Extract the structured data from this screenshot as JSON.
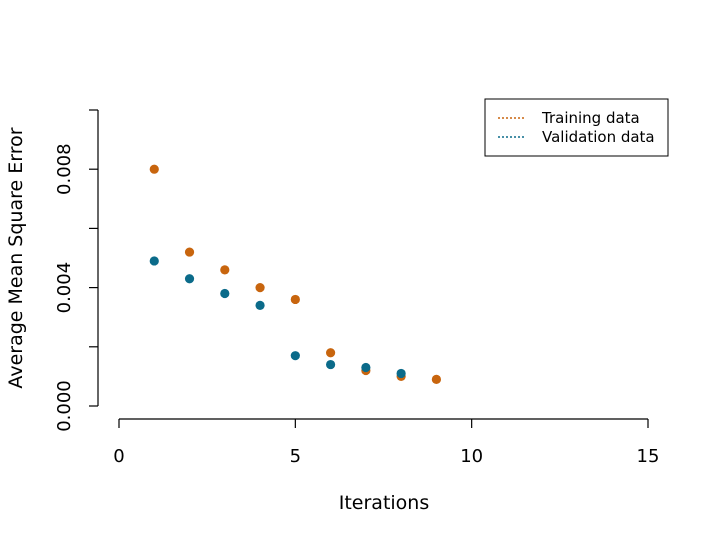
{
  "chart_data": {
    "type": "scatter",
    "xlabel": "Iterations",
    "ylabel": "Average Mean Square Error",
    "xlim": [
      0,
      15
    ],
    "ylim": [
      0,
      0.01
    ],
    "x_ticks": [
      0,
      5,
      10,
      15
    ],
    "x_tick_labels": [
      "0",
      "5",
      "10",
      "15"
    ],
    "y_ticks": [
      0,
      0.002,
      0.004,
      0.006,
      0.008,
      0.01
    ],
    "y_tick_labels": [
      "0.000",
      "",
      "0.004",
      "",
      "0.008",
      ""
    ],
    "legend_position": "top-right",
    "series": [
      {
        "name": "Training data",
        "color": "#c8650e",
        "x": [
          1,
          2,
          3,
          4,
          5,
          6,
          7,
          8,
          9
        ],
        "y": [
          0.008,
          0.0052,
          0.0046,
          0.004,
          0.0036,
          0.0018,
          0.0012,
          0.001,
          0.0009
        ]
      },
      {
        "name": "Validation data",
        "color": "#0b6b8a",
        "x": [
          1,
          2,
          3,
          4,
          5,
          6,
          7,
          8
        ],
        "y": [
          0.0049,
          0.0043,
          0.0038,
          0.0034,
          0.0017,
          0.0014,
          0.0013,
          0.0011
        ]
      }
    ]
  }
}
